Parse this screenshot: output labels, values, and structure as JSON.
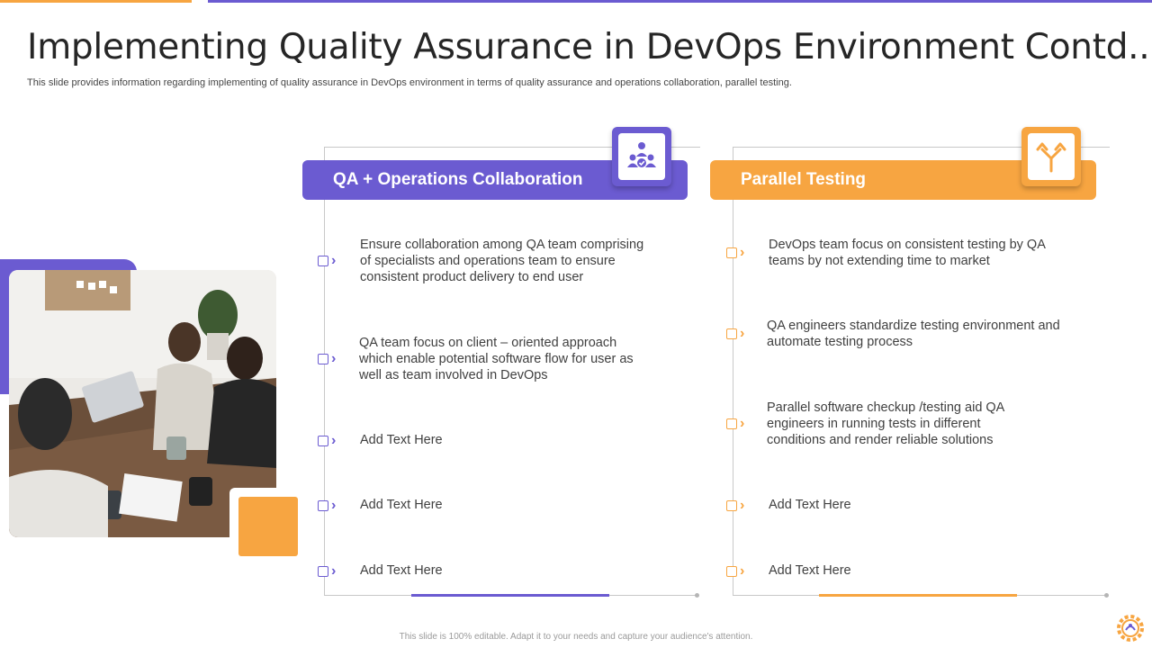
{
  "slide": {
    "title": "Implementing Quality Assurance in DevOps Environment Contd..",
    "subtitle": "This slide provides information regarding implementing of quality assurance in DevOps environment in terms of quality assurance and operations collaboration, parallel testing.",
    "footer": "This slide is 100% editable. Adapt it to your needs and capture your audience's attention."
  },
  "colors": {
    "purple": "#6b5bd1",
    "orange": "#f7a541",
    "text": "#404040"
  },
  "photo": {
    "icon": "team-meeting-photo"
  },
  "left_panel": {
    "heading": "QA + Operations Collaboration",
    "icon": "team-check-icon",
    "items": [
      {
        "text": "Ensure collaboration among QA team comprising of specialists and operations team to ensure consistent product delivery to end user"
      },
      {
        "text": "QA team focus on client – oriented approach which enable potential software flow for user as well as team involved in DevOps"
      },
      {
        "text": "Add Text Here"
      },
      {
        "text": "Add Text Here"
      },
      {
        "text": "Add Text Here"
      }
    ]
  },
  "right_panel": {
    "heading": "Parallel Testing",
    "icon": "split-arrows-icon",
    "items": [
      {
        "text": "DevOps team focus on consistent testing by QA teams by not extending time to market"
      },
      {
        "text": "QA engineers standardize testing environment and automate testing process"
      },
      {
        "text": "Parallel software checkup /testing aid QA engineers in running tests in different conditions and render reliable solutions"
      },
      {
        "text": "Add Text Here"
      },
      {
        "text": "Add Text Here"
      }
    ]
  }
}
